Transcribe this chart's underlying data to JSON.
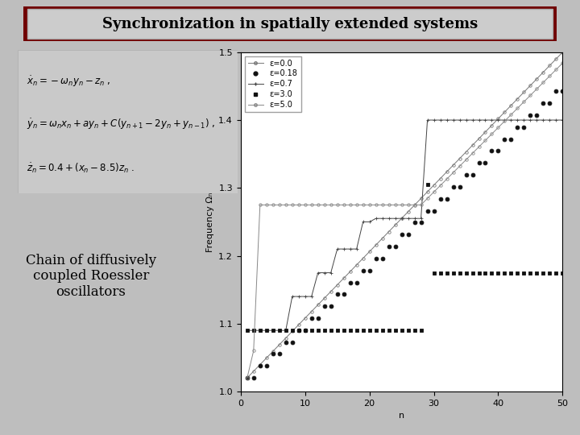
{
  "title": "Synchronization in spatially extended systems",
  "subtitle_text": "Chain of diffusively\ncoupled Roessler\noscillators",
  "bg_color": "#bebebe",
  "title_bg": "#800000",
  "title_inner_bg": "#d0d0d0",
  "plot_xlim": [
    0,
    50
  ],
  "plot_ylim": [
    1.0,
    1.5
  ],
  "xlabel": "n",
  "ylabel": "Frequency Ωₙ",
  "yticks": [
    1.0,
    1.1,
    1.2,
    1.3,
    1.4,
    1.5
  ],
  "xticks": [
    0,
    10,
    20,
    30,
    40,
    50
  ],
  "legend_labels": [
    "ε=0.0",
    "ε=0.18",
    "ε=0.7",
    "ε=3.0",
    "ε=5.0"
  ]
}
